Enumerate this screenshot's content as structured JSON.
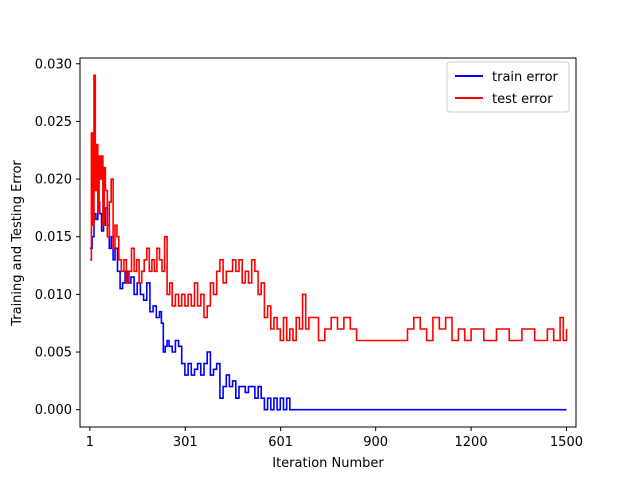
{
  "chart_data": {
    "type": "line",
    "title": "",
    "xlabel": "Iteration Number",
    "ylabel": "Training and Testing Error",
    "xlim": [
      -30,
      1530
    ],
    "ylim": [
      -0.0015,
      0.0305
    ],
    "x_ticks": [
      {
        "value": 1,
        "label": "1"
      },
      {
        "value": 301,
        "label": "301"
      },
      {
        "value": 601,
        "label": "601"
      },
      {
        "value": 900,
        "label": "900"
      },
      {
        "value": 1200,
        "label": "1200"
      },
      {
        "value": 1500,
        "label": "1500"
      }
    ],
    "y_ticks": [
      {
        "value": 0.0,
        "label": "0.000"
      },
      {
        "value": 0.005,
        "label": "0.005"
      },
      {
        "value": 0.01,
        "label": "0.010"
      },
      {
        "value": 0.015,
        "label": "0.015"
      },
      {
        "value": 0.02,
        "label": "0.020"
      },
      {
        "value": 0.025,
        "label": "0.025"
      },
      {
        "value": 0.03,
        "label": "0.030"
      }
    ],
    "grid": false,
    "legend_position": "top-right",
    "series": [
      {
        "name": "train error",
        "color": "#0000ff",
        "x": [
          1,
          8,
          14,
          20,
          26,
          32,
          38,
          44,
          50,
          56,
          62,
          68,
          74,
          80,
          88,
          96,
          104,
          112,
          120,
          130,
          140,
          150,
          160,
          170,
          180,
          190,
          200,
          210,
          220,
          226,
          232,
          238,
          244,
          250,
          260,
          270,
          280,
          290,
          300,
          310,
          320,
          330,
          340,
          350,
          360,
          370,
          380,
          390,
          400,
          410,
          420,
          430,
          440,
          450,
          460,
          470,
          480,
          490,
          500,
          510,
          520,
          530,
          540,
          550,
          560,
          570,
          580,
          590,
          600,
          610,
          620,
          630,
          650,
          700,
          800,
          900,
          1000,
          1100,
          1200,
          1300,
          1400,
          1500
        ],
        "y": [
          0.014,
          0.015,
          0.017,
          0.0165,
          0.018,
          0.017,
          0.0155,
          0.016,
          0.0175,
          0.016,
          0.014,
          0.015,
          0.013,
          0.014,
          0.012,
          0.0105,
          0.011,
          0.012,
          0.011,
          0.0115,
          0.01,
          0.011,
          0.01,
          0.0095,
          0.011,
          0.0085,
          0.009,
          0.008,
          0.0085,
          0.0075,
          0.005,
          0.0055,
          0.006,
          0.0055,
          0.005,
          0.006,
          0.0055,
          0.004,
          0.003,
          0.004,
          0.003,
          0.0035,
          0.004,
          0.003,
          0.004,
          0.005,
          0.003,
          0.0035,
          0.004,
          0.001,
          0.002,
          0.003,
          0.002,
          0.0025,
          0.001,
          0.002,
          0.002,
          0.0015,
          0.002,
          0.002,
          0.001,
          0.002,
          0.001,
          0.0,
          0.001,
          0.0,
          0.001,
          0.0,
          0.001,
          0.0,
          0.001,
          0.0,
          0.0,
          0.0,
          0.0,
          0.0,
          0.0,
          0.0,
          0.0,
          0.0,
          0.0,
          0.0
        ]
      },
      {
        "name": "test error",
        "color": "#ff0000",
        "x": [
          1,
          6,
          10,
          14,
          18,
          22,
          26,
          30,
          34,
          38,
          42,
          46,
          50,
          56,
          62,
          68,
          74,
          80,
          86,
          92,
          100,
          108,
          116,
          124,
          132,
          140,
          148,
          156,
          164,
          172,
          180,
          188,
          196,
          204,
          212,
          220,
          228,
          236,
          244,
          252,
          260,
          270,
          280,
          290,
          300,
          310,
          320,
          330,
          340,
          350,
          360,
          370,
          380,
          390,
          400,
          410,
          420,
          430,
          440,
          450,
          460,
          470,
          480,
          490,
          500,
          510,
          520,
          530,
          540,
          550,
          560,
          570,
          580,
          590,
          600,
          610,
          620,
          630,
          640,
          650,
          660,
          670,
          680,
          690,
          700,
          720,
          740,
          760,
          780,
          800,
          820,
          840,
          860,
          900,
          950,
          1000,
          1020,
          1040,
          1060,
          1080,
          1100,
          1120,
          1140,
          1160,
          1180,
          1200,
          1240,
          1280,
          1320,
          1360,
          1400,
          1440,
          1460,
          1480,
          1490,
          1500
        ],
        "y": [
          0.013,
          0.024,
          0.016,
          0.029,
          0.019,
          0.023,
          0.017,
          0.022,
          0.02,
          0.022,
          0.016,
          0.021,
          0.019,
          0.015,
          0.018,
          0.02,
          0.014,
          0.016,
          0.015,
          0.013,
          0.012,
          0.013,
          0.011,
          0.012,
          0.014,
          0.012,
          0.013,
          0.011,
          0.012,
          0.013,
          0.014,
          0.012,
          0.013,
          0.012,
          0.014,
          0.013,
          0.012,
          0.015,
          0.01,
          0.011,
          0.009,
          0.01,
          0.009,
          0.01,
          0.009,
          0.01,
          0.009,
          0.011,
          0.009,
          0.01,
          0.008,
          0.009,
          0.011,
          0.01,
          0.012,
          0.013,
          0.011,
          0.012,
          0.012,
          0.013,
          0.012,
          0.013,
          0.011,
          0.012,
          0.011,
          0.013,
          0.012,
          0.01,
          0.011,
          0.008,
          0.009,
          0.007,
          0.008,
          0.007,
          0.006,
          0.008,
          0.006,
          0.007,
          0.006,
          0.008,
          0.007,
          0.01,
          0.007,
          0.008,
          0.008,
          0.006,
          0.007,
          0.008,
          0.007,
          0.008,
          0.007,
          0.006,
          0.006,
          0.006,
          0.006,
          0.007,
          0.008,
          0.007,
          0.006,
          0.008,
          0.007,
          0.008,
          0.006,
          0.007,
          0.006,
          0.007,
          0.006,
          0.007,
          0.006,
          0.007,
          0.006,
          0.007,
          0.006,
          0.008,
          0.006,
          0.007
        ]
      }
    ]
  }
}
